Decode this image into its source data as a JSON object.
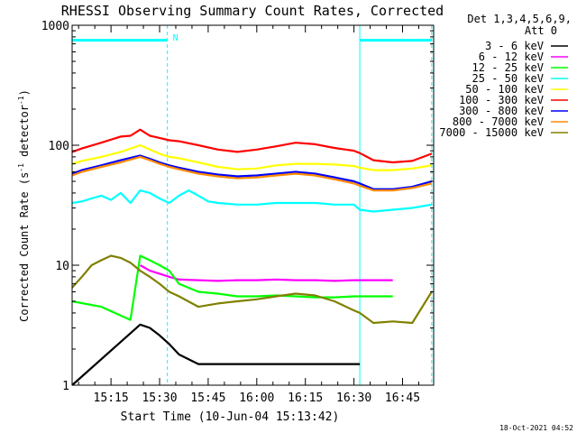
{
  "chart_data": {
    "type": "line",
    "title": "RHESSI Observing Summary Count Rates, Corrected",
    "xlabel": "Start Time (10-Jun-04 15:13:42)",
    "ylabel": "Corrected Count Rate (s⁻¹ detector⁻¹)",
    "ylabel_parts": [
      "Corrected Count Rate (s",
      "-1",
      " detector",
      "-1",
      ")"
    ],
    "yscale": "log",
    "ylim": [
      1,
      1000
    ],
    "xlim_minutes": [
      15.05,
      16.91
    ],
    "x_unit": "hours after 00:00 on 10-Jun-04",
    "ytick_labels": [
      "1",
      "10",
      "100",
      "1000"
    ],
    "ytick_values": [
      1,
      10,
      100,
      1000
    ],
    "xtick_labels": [
      "15:15",
      "15:30",
      "15:45",
      "16:00",
      "16:15",
      "16:30",
      "16:45"
    ],
    "xtick_values": [
      15.25,
      15.5,
      15.75,
      16.0,
      16.25,
      16.5,
      16.75
    ],
    "legend_header": [
      "Det 1,3,4,5,6,9,",
      "Att 0"
    ],
    "legend_position": "right",
    "footer_date": "18-Oct-2021 04:52",
    "night_marker": "N",
    "flag_bars": [
      {
        "name": "night",
        "start": 15.05,
        "end": 15.54,
        "value": 750
      },
      {
        "name": "night",
        "start": 16.53,
        "end": 16.9,
        "value": 750
      }
    ],
    "vertical_markers": [
      15.05,
      15.54,
      16.53,
      16.9
    ],
    "series": [
      {
        "name": "3 - 6 keV",
        "color": "#000000",
        "x": [
          15.05,
          15.4,
          15.45,
          15.5,
          15.55,
          15.6,
          15.7,
          15.8,
          15.9,
          16.0,
          16.1,
          16.2,
          16.3,
          16.4,
          16.5,
          16.53
        ],
        "y": [
          1.0,
          3.2,
          3.0,
          2.6,
          2.2,
          1.8,
          1.5,
          1.5,
          1.5,
          1.5,
          1.5,
          1.5,
          1.5,
          1.5,
          1.5,
          1.5
        ]
      },
      {
        "name": "6 - 12 keV",
        "color": "#ff00ff",
        "x": [
          15.4,
          15.45,
          15.5,
          15.55,
          15.6,
          15.7,
          15.8,
          15.9,
          16.0,
          16.1,
          16.2,
          16.3,
          16.4,
          16.5,
          16.53,
          16.6,
          16.7
        ],
        "y": [
          10.0,
          9.0,
          8.5,
          8.0,
          7.6,
          7.5,
          7.4,
          7.5,
          7.5,
          7.6,
          7.5,
          7.5,
          7.4,
          7.5,
          7.5,
          7.5,
          7.5
        ]
      },
      {
        "name": "12 - 25 keV",
        "color": "#00ff00",
        "x": [
          15.05,
          15.2,
          15.35,
          15.4,
          15.45,
          15.5,
          15.55,
          15.6,
          15.7,
          15.8,
          15.9,
          16.0,
          16.1,
          16.2,
          16.3,
          16.4,
          16.5,
          16.53,
          16.6,
          16.7
        ],
        "y": [
          5.0,
          4.5,
          3.5,
          12.0,
          11.0,
          10.0,
          9.0,
          7.0,
          6.0,
          5.8,
          5.5,
          5.5,
          5.6,
          5.5,
          5.4,
          5.4,
          5.5,
          5.5,
          5.5,
          5.5
        ]
      },
      {
        "name": "25 - 50 keV",
        "color": "#00ffff",
        "x": [
          15.05,
          15.1,
          15.15,
          15.2,
          15.25,
          15.3,
          15.35,
          15.4,
          15.45,
          15.5,
          15.55,
          15.6,
          15.65,
          15.7,
          15.75,
          15.8,
          15.9,
          16.0,
          16.1,
          16.2,
          16.3,
          16.4,
          16.5,
          16.53,
          16.6,
          16.7,
          16.8,
          16.9
        ],
        "y": [
          33,
          34,
          36,
          38,
          35,
          40,
          33,
          42,
          40,
          36,
          33,
          38,
          42,
          38,
          34,
          33,
          32,
          32,
          33,
          33,
          33,
          32,
          32,
          29,
          28,
          29,
          30,
          32
        ]
      },
      {
        "name": "50 - 100 keV",
        "color": "#ffff00",
        "x": [
          15.05,
          15.1,
          15.2,
          15.3,
          15.4,
          15.45,
          15.5,
          15.55,
          15.6,
          15.7,
          15.8,
          15.9,
          16.0,
          16.1,
          16.2,
          16.3,
          16.4,
          16.5,
          16.53,
          16.6,
          16.7,
          16.8,
          16.9
        ],
        "y": [
          70,
          74,
          80,
          88,
          100,
          92,
          85,
          80,
          78,
          72,
          66,
          63,
          64,
          68,
          70,
          70,
          69,
          67,
          65,
          62,
          62,
          64,
          68
        ]
      },
      {
        "name": "100 - 300 keV",
        "color": "#ff0000",
        "x": [
          15.05,
          15.1,
          15.2,
          15.3,
          15.35,
          15.4,
          15.45,
          15.5,
          15.55,
          15.6,
          15.7,
          15.8,
          15.9,
          16.0,
          16.1,
          16.2,
          16.3,
          16.4,
          16.5,
          16.53,
          16.6,
          16.7,
          16.8,
          16.9
        ],
        "y": [
          88,
          94,
          105,
          118,
          120,
          135,
          120,
          115,
          110,
          108,
          100,
          92,
          88,
          92,
          98,
          105,
          102,
          95,
          90,
          86,
          75,
          72,
          74,
          85
        ]
      },
      {
        "name": "300 - 800 keV",
        "color": "#0000ff",
        "x": [
          15.05,
          15.1,
          15.2,
          15.3,
          15.4,
          15.45,
          15.5,
          15.55,
          15.6,
          15.7,
          15.8,
          15.9,
          16.0,
          16.1,
          16.2,
          16.3,
          16.4,
          16.5,
          16.53,
          16.6,
          16.7,
          16.8,
          16.9
        ],
        "y": [
          58,
          62,
          68,
          75,
          82,
          77,
          72,
          68,
          65,
          60,
          57,
          55,
          56,
          58,
          60,
          58,
          54,
          50,
          48,
          43,
          43,
          45,
          50
        ]
      },
      {
        "name": "800 - 7000 keV",
        "color": "#ff8c00",
        "x": [
          15.05,
          15.1,
          15.2,
          15.3,
          15.4,
          15.45,
          15.5,
          15.55,
          15.6,
          15.7,
          15.8,
          15.9,
          16.0,
          16.1,
          16.2,
          16.3,
          16.4,
          16.5,
          16.53,
          16.6,
          16.7,
          16.8,
          16.9
        ],
        "y": [
          56,
          60,
          66,
          72,
          80,
          75,
          70,
          66,
          63,
          58,
          55,
          53,
          54,
          56,
          58,
          56,
          52,
          48,
          46,
          42,
          42,
          44,
          48
        ]
      },
      {
        "name": "7000 - 15000 keV",
        "color": "#808000",
        "x": [
          15.05,
          15.1,
          15.15,
          15.2,
          15.25,
          15.3,
          15.35,
          15.4,
          15.45,
          15.5,
          15.55,
          15.6,
          15.7,
          15.8,
          15.9,
          16.0,
          16.1,
          16.2,
          16.3,
          16.4,
          16.5,
          16.53,
          16.6,
          16.7,
          16.8,
          16.9
        ],
        "y": [
          6.5,
          8.0,
          10.0,
          11.0,
          12.0,
          11.5,
          10.5,
          9.0,
          8.0,
          7.0,
          6.0,
          5.5,
          4.5,
          4.8,
          5.0,
          5.2,
          5.5,
          5.8,
          5.6,
          5.0,
          4.2,
          4.0,
          3.3,
          3.4,
          3.3,
          6.0
        ]
      }
    ]
  }
}
